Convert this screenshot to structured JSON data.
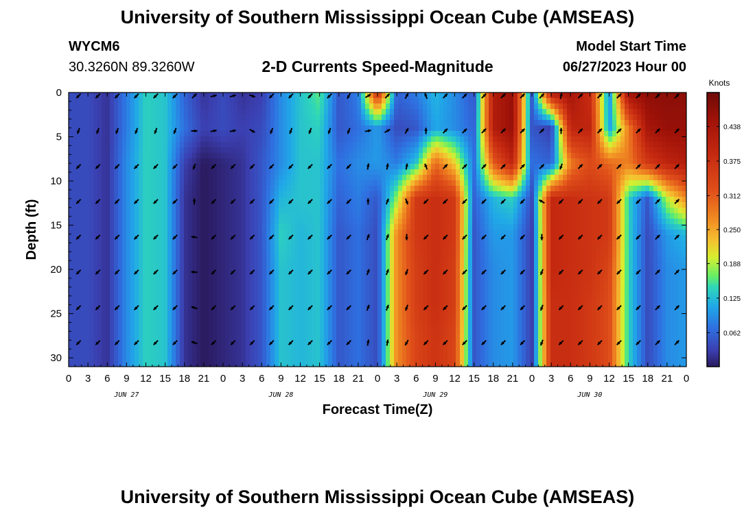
{
  "header": {
    "title": "University of Southern Mississippi Ocean Cube (AMSEAS)",
    "station": "WYCM6",
    "coords": "30.3260N  89.3260W",
    "subtitle": "2-D Currents Speed-Magnitude",
    "model_label": "Model Start Time",
    "model_time": "06/27/2023 Hour 00"
  },
  "footer": {
    "title": "University of Southern Mississippi Ocean Cube (AMSEAS)"
  },
  "chart_data": {
    "type": "heatmap",
    "title": "2-D Currents Speed-Magnitude",
    "xlabel": "Forecast Time(Z)",
    "ylabel": "Depth (ft)",
    "x_range_hours": [
      0,
      96
    ],
    "ylim": [
      0,
      31
    ],
    "x_tick_labels": [
      "0",
      "3",
      "6",
      "9",
      "12",
      "15",
      "18",
      "21",
      "0",
      "3",
      "6",
      "9",
      "12",
      "15",
      "18",
      "21",
      "0",
      "3",
      "6",
      "9",
      "12",
      "15",
      "18",
      "21",
      "0",
      "3",
      "6",
      "9",
      "12",
      "15",
      "18",
      "21",
      "0"
    ],
    "y_ticks": [
      0,
      5,
      10,
      15,
      20,
      25,
      30
    ],
    "y_tick_labels": [
      "0",
      "5",
      "10",
      "15",
      "20",
      "25",
      "30"
    ],
    "date_labels": [
      {
        "label": "JUN 27",
        "hour": 9
      },
      {
        "label": "JUN 28",
        "hour": 33
      },
      {
        "label": "JUN 29",
        "hour": 57
      },
      {
        "label": "JUN 30",
        "hour": 81
      }
    ],
    "colorbar": {
      "title": "Knots",
      "min": 0.0,
      "max": 0.5,
      "tick_values": [
        0.062,
        0.125,
        0.188,
        0.25,
        0.312,
        0.375,
        0.438
      ],
      "tick_labels": [
        "0.062",
        "0.125",
        "0.188",
        "0.250",
        "0.312",
        "0.375",
        "0.438"
      ]
    },
    "depth_levels": [
      0,
      4,
      8,
      12,
      16,
      20,
      24,
      28
    ],
    "time_hours": [
      0,
      3,
      6,
      9,
      12,
      15,
      18,
      21,
      24,
      27,
      30,
      33,
      36,
      39,
      42,
      45,
      48,
      51,
      54,
      57,
      60,
      63,
      66,
      69,
      72,
      75,
      78,
      81,
      84,
      87,
      90,
      93,
      96
    ],
    "speed_knots": [
      [
        0.04,
        0.04,
        0.02,
        0.08,
        0.14,
        0.13,
        0.06,
        0.02,
        0.04,
        0.02,
        0.03,
        0.09,
        0.13,
        0.16,
        0.05,
        0.08,
        0.38,
        0.06,
        0.08,
        0.12,
        0.09,
        0.05,
        0.42,
        0.46,
        0.06,
        0.42,
        0.44,
        0.38,
        0.09,
        0.45,
        0.47,
        0.47,
        0.47
      ],
      [
        0.04,
        0.04,
        0.02,
        0.08,
        0.14,
        0.13,
        0.07,
        0.03,
        0.04,
        0.03,
        0.04,
        0.09,
        0.13,
        0.14,
        0.05,
        0.07,
        0.1,
        0.04,
        0.05,
        0.11,
        0.09,
        0.06,
        0.42,
        0.46,
        0.05,
        0.03,
        0.4,
        0.4,
        0.1,
        0.28,
        0.44,
        0.46,
        0.46
      ],
      [
        0.04,
        0.04,
        0.02,
        0.09,
        0.14,
        0.13,
        0.03,
        0.0,
        0.01,
        0.02,
        0.05,
        0.09,
        0.13,
        0.13,
        0.07,
        0.09,
        0.1,
        0.08,
        0.13,
        0.3,
        0.22,
        0.07,
        0.31,
        0.4,
        0.07,
        0.06,
        0.28,
        0.33,
        0.3,
        0.28,
        0.36,
        0.4,
        0.42
      ],
      [
        0.04,
        0.04,
        0.02,
        0.09,
        0.14,
        0.13,
        0.02,
        0.0,
        0.01,
        0.02,
        0.05,
        0.12,
        0.13,
        0.13,
        0.06,
        0.08,
        0.05,
        0.18,
        0.36,
        0.38,
        0.36,
        0.06,
        0.12,
        0.14,
        0.04,
        0.39,
        0.38,
        0.37,
        0.36,
        0.14,
        0.05,
        0.19,
        0.27
      ],
      [
        0.04,
        0.04,
        0.02,
        0.09,
        0.14,
        0.13,
        0.02,
        0.0,
        0.01,
        0.02,
        0.05,
        0.14,
        0.12,
        0.13,
        0.05,
        0.07,
        0.04,
        0.27,
        0.36,
        0.38,
        0.36,
        0.05,
        0.1,
        0.1,
        0.03,
        0.39,
        0.38,
        0.37,
        0.36,
        0.14,
        0.04,
        0.1,
        0.12
      ],
      [
        0.04,
        0.04,
        0.02,
        0.09,
        0.14,
        0.13,
        0.02,
        0.0,
        0.01,
        0.02,
        0.05,
        0.13,
        0.12,
        0.13,
        0.05,
        0.07,
        0.04,
        0.27,
        0.35,
        0.38,
        0.35,
        0.05,
        0.09,
        0.1,
        0.03,
        0.39,
        0.38,
        0.37,
        0.34,
        0.14,
        0.04,
        0.09,
        0.1
      ],
      [
        0.04,
        0.04,
        0.02,
        0.09,
        0.14,
        0.13,
        0.02,
        0.0,
        0.01,
        0.02,
        0.05,
        0.13,
        0.12,
        0.13,
        0.05,
        0.07,
        0.04,
        0.27,
        0.35,
        0.38,
        0.35,
        0.05,
        0.09,
        0.1,
        0.03,
        0.38,
        0.38,
        0.36,
        0.33,
        0.14,
        0.04,
        0.09,
        0.1
      ],
      [
        0.04,
        0.04,
        0.02,
        0.09,
        0.14,
        0.13,
        0.02,
        0.0,
        0.01,
        0.02,
        0.05,
        0.13,
        0.12,
        0.13,
        0.05,
        0.07,
        0.04,
        0.27,
        0.34,
        0.37,
        0.34,
        0.05,
        0.09,
        0.1,
        0.03,
        0.38,
        0.38,
        0.36,
        0.33,
        0.14,
        0.04,
        0.09,
        0.1
      ]
    ],
    "arrow_times": [
      1,
      4,
      7,
      10,
      13,
      16,
      19,
      22,
      25,
      28,
      31,
      34,
      37,
      40,
      43,
      46,
      49,
      52,
      55,
      58,
      61,
      64,
      67,
      70,
      73,
      76,
      79,
      82,
      85,
      88,
      91,
      94
    ],
    "arrow_direction_deg": [
      [
        225,
        225,
        225,
        225,
        225,
        225,
        45,
        75,
        75,
        110,
        225,
        225,
        225,
        225,
        210,
        60,
        45,
        30,
        340,
        45,
        45,
        45,
        45,
        45,
        45,
        10,
        45,
        45,
        45,
        45,
        45,
        45
      ],
      [
        200,
        200,
        200,
        200,
        200,
        200,
        90,
        80,
        80,
        120,
        200,
        200,
        200,
        200,
        200,
        80,
        60,
        30,
        0,
        45,
        45,
        45,
        45,
        45,
        45,
        0,
        45,
        45,
        45,
        45,
        45,
        45
      ],
      [
        225,
        225,
        225,
        225,
        225,
        225,
        200,
        225,
        225,
        225,
        225,
        225,
        225,
        225,
        225,
        10,
        10,
        10,
        340,
        45,
        45,
        45,
        45,
        45,
        45,
        200,
        45,
        45,
        45,
        45,
        45,
        45
      ],
      [
        225,
        225,
        225,
        225,
        225,
        225,
        0,
        225,
        225,
        225,
        225,
        225,
        225,
        225,
        225,
        0,
        20,
        160,
        225,
        225,
        225,
        225,
        225,
        225,
        300,
        225,
        225,
        225,
        225,
        225,
        45,
        45
      ],
      [
        225,
        225,
        225,
        225,
        225,
        225,
        280,
        225,
        225,
        225,
        225,
        225,
        225,
        225,
        225,
        20,
        20,
        180,
        225,
        225,
        225,
        225,
        225,
        225,
        180,
        225,
        225,
        225,
        225,
        225,
        45,
        45
      ],
      [
        225,
        225,
        225,
        225,
        225,
        225,
        275,
        225,
        225,
        225,
        225,
        225,
        225,
        225,
        225,
        20,
        20,
        200,
        225,
        225,
        225,
        225,
        225,
        225,
        200,
        225,
        225,
        225,
        225,
        225,
        45,
        45
      ],
      [
        225,
        225,
        225,
        225,
        225,
        225,
        290,
        225,
        225,
        225,
        225,
        225,
        225,
        225,
        225,
        20,
        20,
        200,
        225,
        225,
        225,
        225,
        225,
        225,
        200,
        225,
        225,
        225,
        225,
        225,
        45,
        45
      ],
      [
        225,
        225,
        225,
        225,
        225,
        225,
        290,
        225,
        225,
        225,
        225,
        225,
        225,
        225,
        225,
        10,
        10,
        210,
        225,
        225,
        225,
        225,
        225,
        225,
        200,
        225,
        225,
        225,
        225,
        225,
        45,
        45
      ]
    ]
  }
}
